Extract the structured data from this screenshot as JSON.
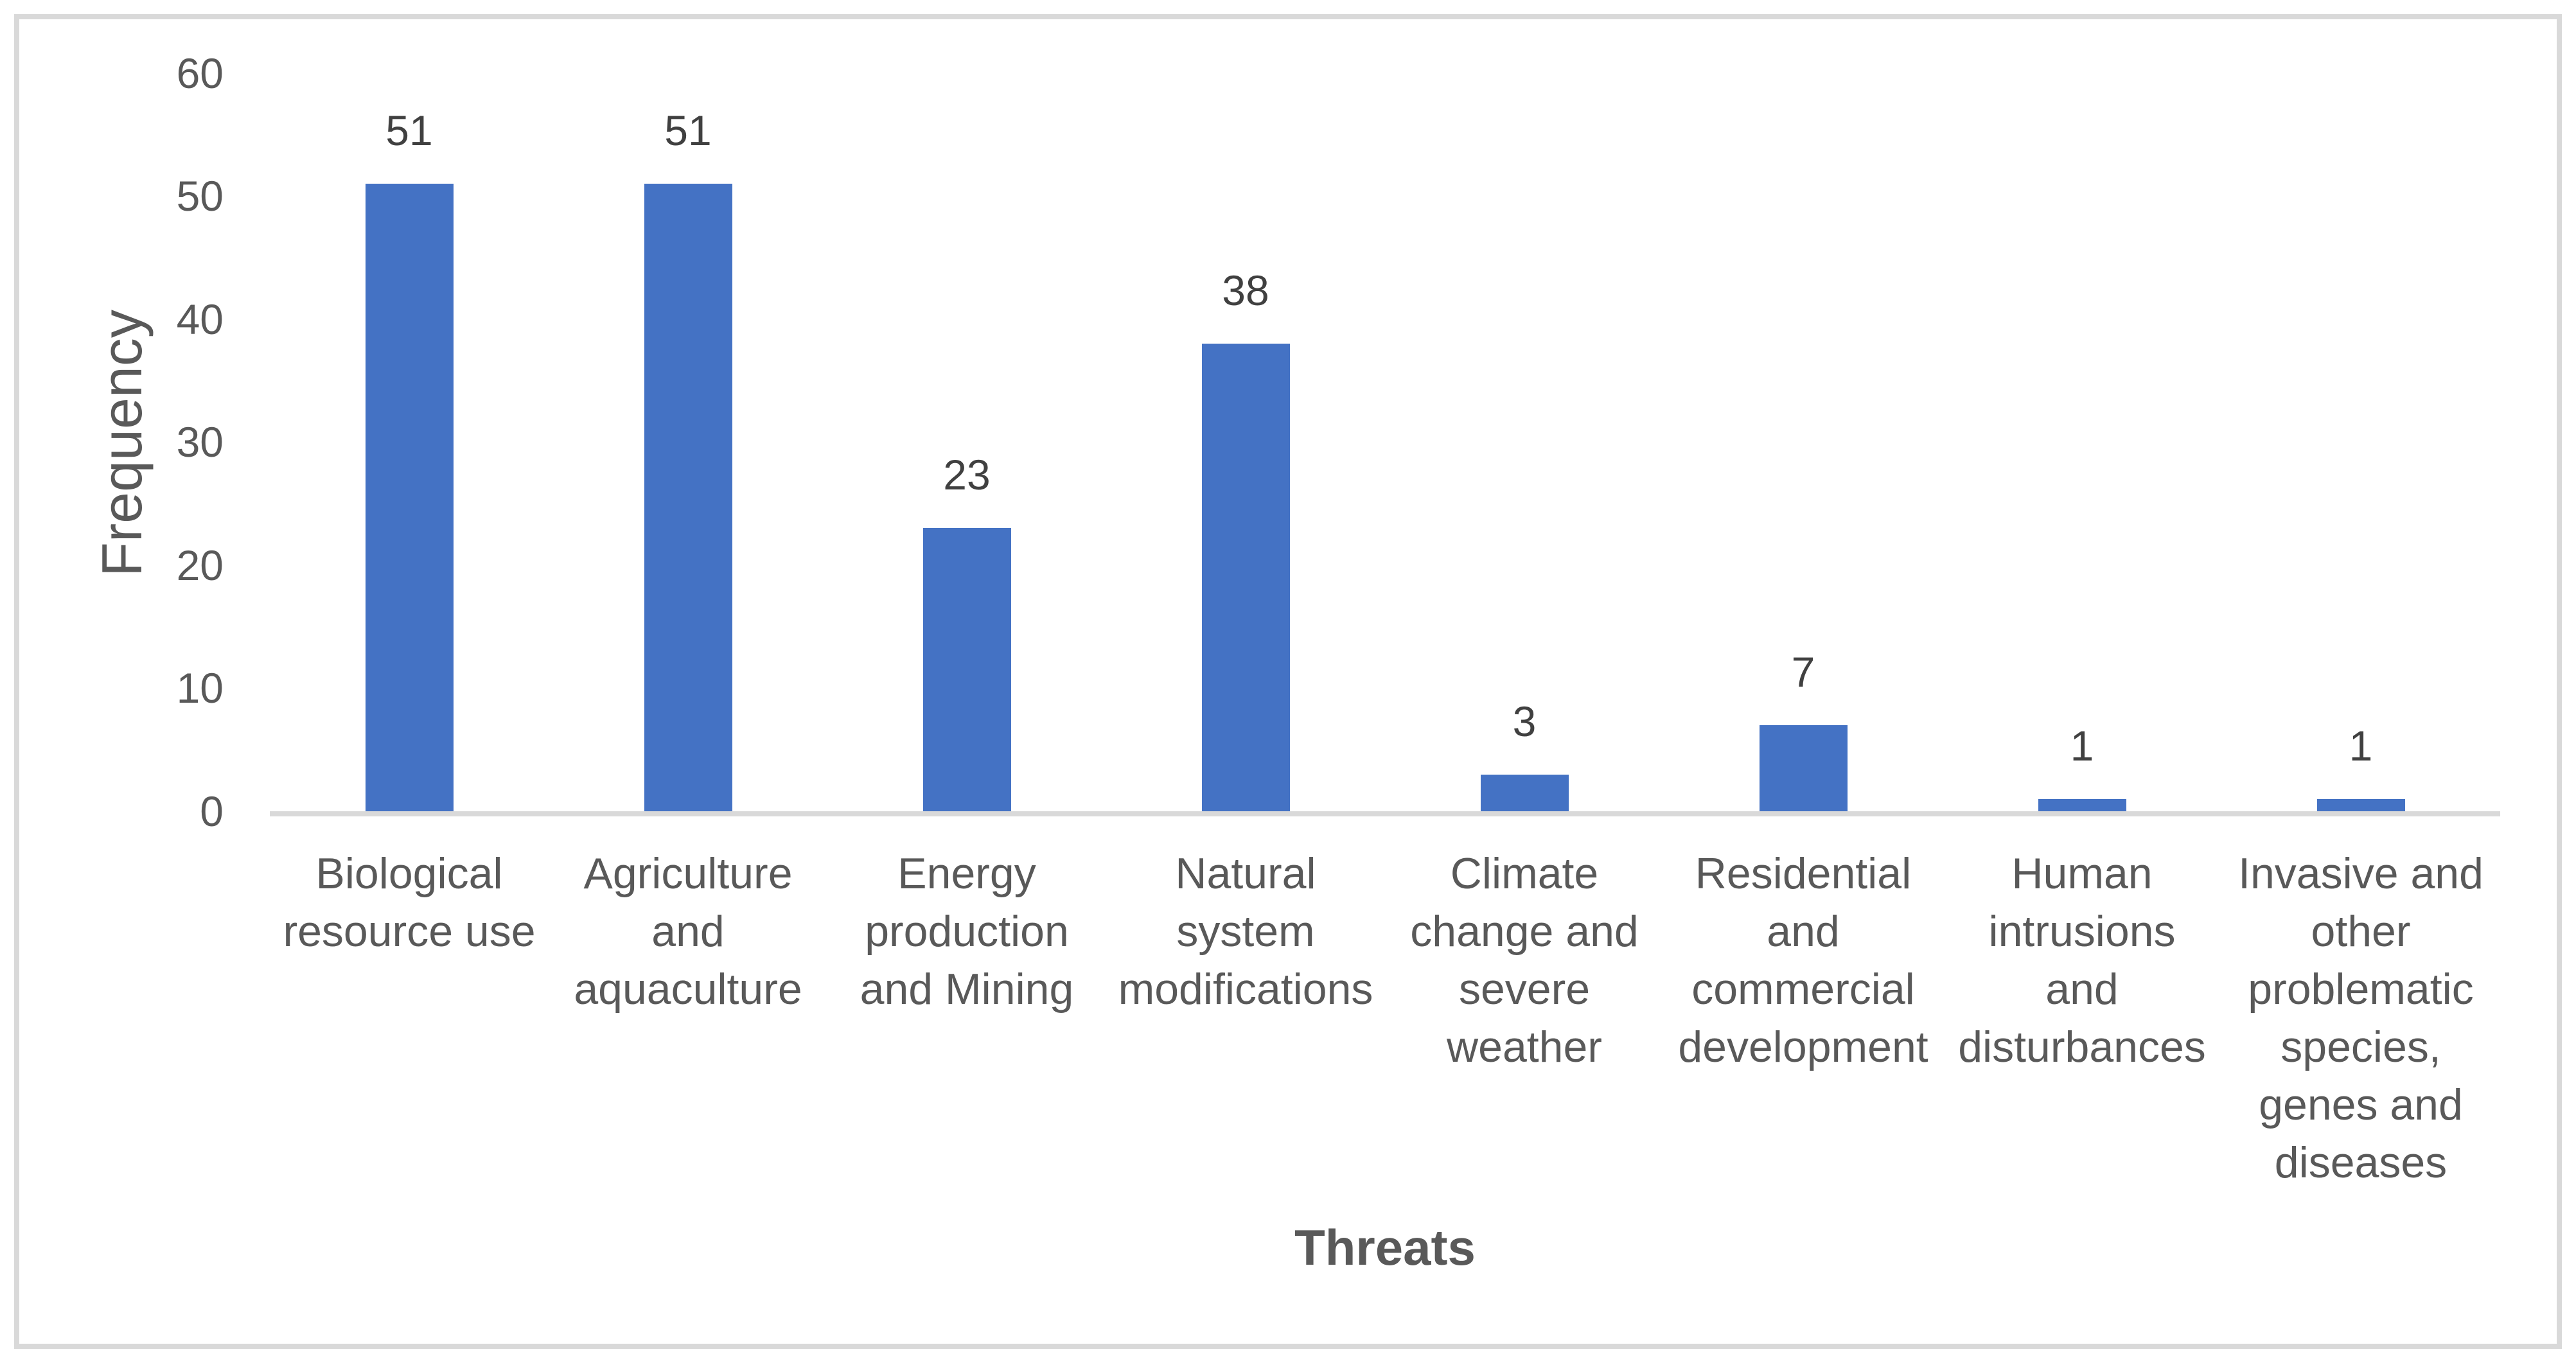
{
  "chart_data": {
    "type": "bar",
    "title": "",
    "xlabel": "Threats",
    "ylabel": "Frequency",
    "categories": [
      "Biological resource use",
      "Agriculture and aquaculture",
      "Energy production and Mining",
      "Natural system modifications",
      "Climate change and severe weather",
      "Residential and commercial development",
      "Human intrusions and disturbances",
      "Invasive and other problematic species, genes and diseases"
    ],
    "values": [
      51,
      51,
      23,
      38,
      3,
      7,
      1,
      1
    ],
    "data_labels": [
      "51",
      "51",
      "23",
      "38",
      "3",
      "7",
      "1",
      "1"
    ],
    "ylim": [
      0,
      60
    ],
    "yticks": [
      "0",
      "10",
      "20",
      "30",
      "40",
      "50",
      "60"
    ],
    "grid": false,
    "legend": false,
    "colors": {
      "bar": "#4472c4",
      "axis_line": "#d9d9d9",
      "frame_border": "#d9d9d9",
      "tick_text": "#595959",
      "category_text": "#595959",
      "value_label_text": "#404040",
      "axis_title_text": "#595959",
      "background": "#ffffff"
    }
  }
}
